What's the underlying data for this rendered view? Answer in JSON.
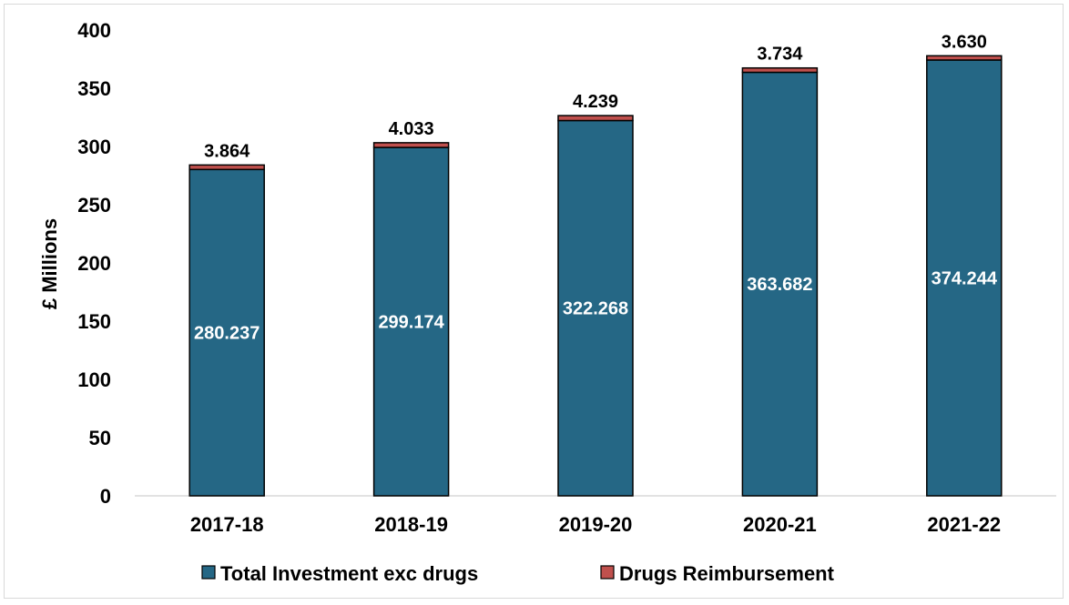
{
  "chart_data": {
    "type": "bar",
    "stacked": true,
    "categories": [
      "2017-18",
      "2018-19",
      "2019-20",
      "2020-21",
      "2021-22"
    ],
    "series": [
      {
        "name": "Total Investment exc drugs",
        "values": [
          280.237,
          299.174,
          322.268,
          363.682,
          374.244
        ],
        "labels": [
          "280.237",
          "299.174",
          "322.268",
          "363.682",
          "374.244"
        ],
        "color": "#256785"
      },
      {
        "name": "Drugs Reimbursement",
        "values": [
          3.864,
          4.033,
          4.239,
          3.734,
          3.63
        ],
        "labels": [
          "3.864",
          "4.033",
          "4.239",
          "3.734",
          "3.630"
        ],
        "color": "#c0504d"
      }
    ],
    "ylabel": "£ Millions",
    "ylim": [
      0,
      400
    ],
    "yticks": [
      "0",
      "50",
      "100",
      "150",
      "200",
      "250",
      "300",
      "350",
      "400"
    ],
    "grid": false,
    "legend": "bottom"
  }
}
